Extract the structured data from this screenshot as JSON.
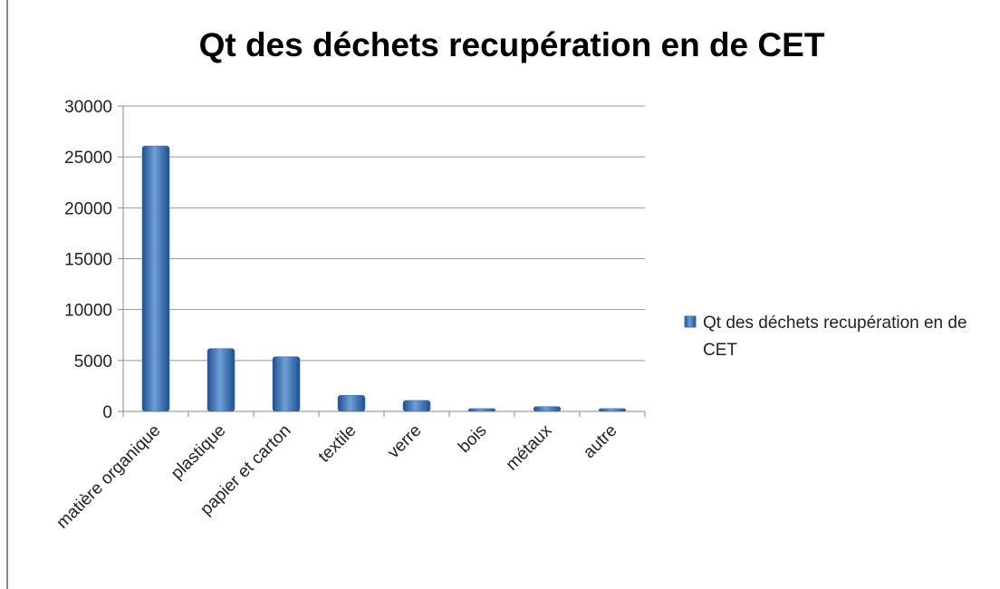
{
  "chart_data": {
    "type": "bar",
    "title": "Qt des déchets recupération en de CET",
    "categories": [
      "matière organique",
      "plastique",
      "papier et carton",
      "textile",
      "verre",
      "bois",
      "métaux",
      "autre"
    ],
    "series": [
      {
        "name": "Qt des déchets recupération en de CET",
        "color": "#3a6fb5",
        "values": [
          25900,
          6000,
          5200,
          1400,
          900,
          100,
          300,
          100
        ]
      }
    ],
    "ylim": [
      0,
      30000
    ],
    "yticks": [
      0,
      5000,
      10000,
      15000,
      20000,
      25000,
      30000
    ],
    "grid": true
  }
}
